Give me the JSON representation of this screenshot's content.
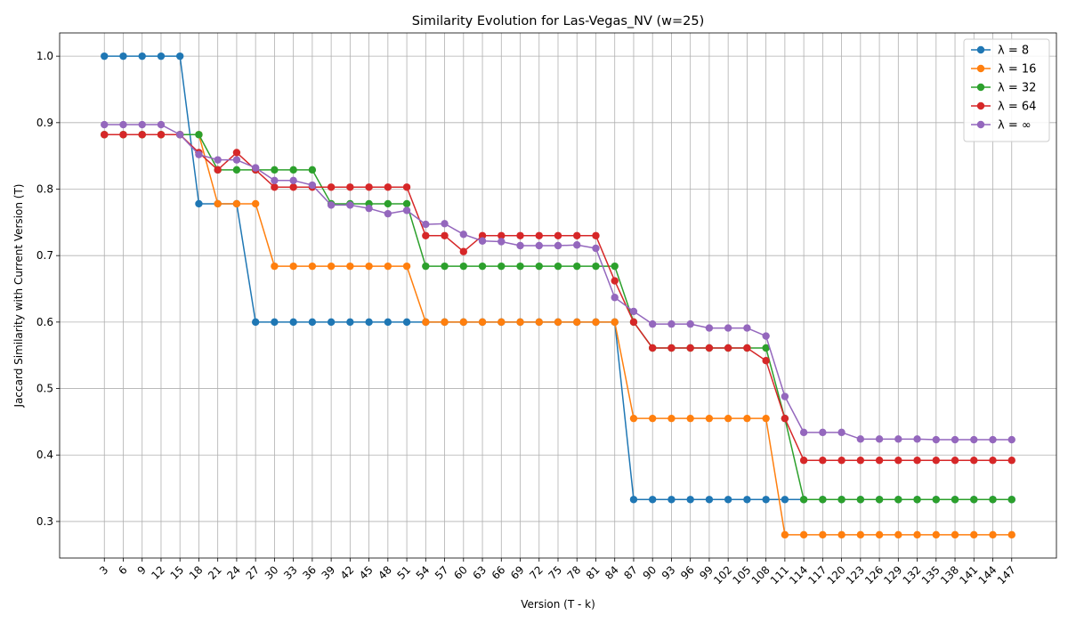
{
  "chart_data": {
    "type": "line",
    "title": "Similarity Evolution for Las-Vegas_NV (w=25)",
    "xlabel": "Version (T - k)",
    "ylabel": "Jaccard Similarity with Current Version (T)",
    "ylim": [
      0.245,
      1.035
    ],
    "yticks": [
      0.3,
      0.4,
      0.5,
      0.6,
      0.7,
      0.8,
      0.9,
      1.0
    ],
    "ytick_labels": [
      "0.3",
      "0.4",
      "0.5",
      "0.6",
      "0.7",
      "0.8",
      "0.9",
      "1.0"
    ],
    "x": [
      3,
      6,
      9,
      12,
      15,
      18,
      21,
      24,
      27,
      30,
      33,
      36,
      39,
      42,
      45,
      48,
      51,
      54,
      57,
      60,
      63,
      66,
      69,
      72,
      75,
      78,
      81,
      84,
      87,
      90,
      93,
      96,
      99,
      102,
      105,
      108,
      111,
      114,
      117,
      120,
      123,
      126,
      129,
      132,
      135,
      138,
      141,
      144,
      147
    ],
    "xtick_labels": [
      "3",
      "6",
      "9",
      "12",
      "15",
      "18",
      "21",
      "24",
      "27",
      "30",
      "33",
      "36",
      "39",
      "42",
      "45",
      "48",
      "51",
      "54",
      "57",
      "60",
      "63",
      "66",
      "69",
      "72",
      "75",
      "78",
      "81",
      "84",
      "87",
      "90",
      "93",
      "96",
      "99",
      "102",
      "105",
      "108",
      "111",
      "114",
      "117",
      "120",
      "123",
      "126",
      "129",
      "132",
      "135",
      "138",
      "141",
      "144",
      "147"
    ],
    "grid": true,
    "legend_position": "top-right",
    "series": [
      {
        "name": "λ = 8",
        "color": "#1f77b4",
        "values": [
          1.0,
          1.0,
          1.0,
          1.0,
          1.0,
          0.778,
          0.778,
          0.778,
          0.6,
          0.6,
          0.6,
          0.6,
          0.6,
          0.6,
          0.6,
          0.6,
          0.6,
          0.6,
          0.6,
          0.6,
          0.6,
          0.6,
          0.6,
          0.6,
          0.6,
          0.6,
          0.6,
          0.6,
          0.333,
          0.333,
          0.333,
          0.333,
          0.333,
          0.333,
          0.333,
          0.333,
          0.333,
          0.333,
          0.333,
          0.333,
          0.333,
          0.333,
          0.333,
          0.333,
          0.333,
          0.333,
          0.333,
          0.333,
          0.333
        ]
      },
      {
        "name": "λ = 16",
        "color": "#ff7f0e",
        "values": [
          0.882,
          0.882,
          0.882,
          0.882,
          0.882,
          0.882,
          0.778,
          0.778,
          0.778,
          0.684,
          0.684,
          0.684,
          0.684,
          0.684,
          0.684,
          0.684,
          0.684,
          0.6,
          0.6,
          0.6,
          0.6,
          0.6,
          0.6,
          0.6,
          0.6,
          0.6,
          0.6,
          0.6,
          0.455,
          0.455,
          0.455,
          0.455,
          0.455,
          0.455,
          0.455,
          0.455,
          0.28,
          0.28,
          0.28,
          0.28,
          0.28,
          0.28,
          0.28,
          0.28,
          0.28,
          0.28,
          0.28,
          0.28,
          0.28
        ]
      },
      {
        "name": "λ = 32",
        "color": "#2ca02c",
        "values": [
          0.882,
          0.882,
          0.882,
          0.882,
          0.882,
          0.882,
          0.829,
          0.829,
          0.829,
          0.829,
          0.829,
          0.829,
          0.778,
          0.778,
          0.778,
          0.778,
          0.778,
          0.684,
          0.684,
          0.684,
          0.684,
          0.684,
          0.684,
          0.684,
          0.684,
          0.684,
          0.684,
          0.684,
          0.6,
          0.561,
          0.561,
          0.561,
          0.561,
          0.561,
          0.561,
          0.561,
          0.455,
          0.333,
          0.333,
          0.333,
          0.333,
          0.333,
          0.333,
          0.333,
          0.333,
          0.333,
          0.333,
          0.333,
          0.333
        ]
      },
      {
        "name": "λ = 64",
        "color": "#d62728",
        "values": [
          0.882,
          0.882,
          0.882,
          0.882,
          0.882,
          0.855,
          0.829,
          0.855,
          0.829,
          0.803,
          0.803,
          0.803,
          0.803,
          0.803,
          0.803,
          0.803,
          0.803,
          0.73,
          0.73,
          0.706,
          0.73,
          0.73,
          0.73,
          0.73,
          0.73,
          0.73,
          0.73,
          0.662,
          0.6,
          0.561,
          0.561,
          0.561,
          0.561,
          0.561,
          0.561,
          0.542,
          0.455,
          0.392,
          0.392,
          0.392,
          0.392,
          0.392,
          0.392,
          0.392,
          0.392,
          0.392,
          0.392,
          0.392,
          0.392
        ]
      },
      {
        "name": "λ = ∞",
        "color": "#9467bd",
        "values": [
          0.897,
          0.897,
          0.897,
          0.897,
          0.882,
          0.852,
          0.844,
          0.844,
          0.832,
          0.813,
          0.813,
          0.806,
          0.776,
          0.776,
          0.771,
          0.763,
          0.768,
          0.747,
          0.748,
          0.732,
          0.722,
          0.721,
          0.715,
          0.715,
          0.715,
          0.716,
          0.711,
          0.637,
          0.616,
          0.597,
          0.597,
          0.597,
          0.591,
          0.591,
          0.591,
          0.579,
          0.488,
          0.434,
          0.434,
          0.434,
          0.424,
          0.424,
          0.424,
          0.424,
          0.423,
          0.423,
          0.423,
          0.423,
          0.423
        ]
      }
    ]
  }
}
